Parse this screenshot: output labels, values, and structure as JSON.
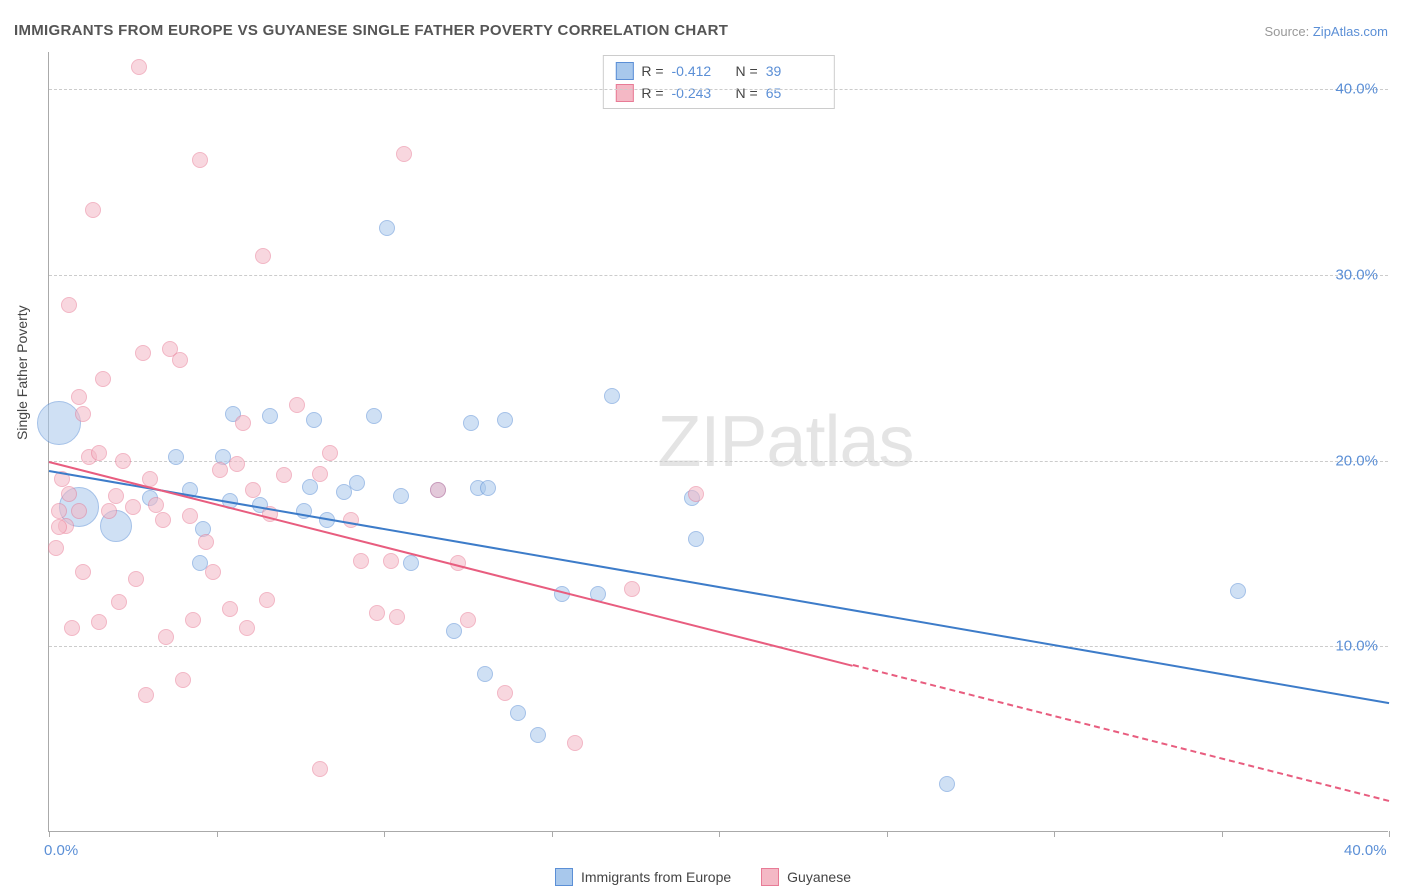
{
  "title": "IMMIGRANTS FROM EUROPE VS GUYANESE SINGLE FATHER POVERTY CORRELATION CHART",
  "source_prefix": "Source: ",
  "source_link": "ZipAtlas.com",
  "y_axis_label": "Single Father Poverty",
  "watermark_a": "ZIP",
  "watermark_b": "atlas",
  "chart": {
    "type": "scatter",
    "background_color": "#ffffff",
    "grid_color": "#cccccc",
    "axis_color": "#aaaaaa",
    "tick_label_color": "#5b8fd6",
    "xlim": [
      0,
      40
    ],
    "ylim": [
      0,
      42
    ],
    "y_ticks": [
      10,
      20,
      30,
      40
    ],
    "y_tick_labels": [
      "10.0%",
      "20.0%",
      "30.0%",
      "40.0%"
    ],
    "x_ticks": [
      0,
      5,
      10,
      15,
      20,
      25,
      30,
      35,
      40
    ],
    "x_tick_labels": {
      "0": "0.0%",
      "40": "40.0%"
    },
    "series": [
      {
        "name": "Immigrants from Europe",
        "fill": "#a8c8ec",
        "stroke": "#5b8fd6",
        "fill_opacity": 0.55,
        "R": -0.412,
        "N": 39,
        "trend": {
          "x1": 0,
          "y1": 19.5,
          "x2": 40,
          "y2": 7.0,
          "solid_until_x": 40,
          "color": "#3d7cc9",
          "width": 2
        },
        "points": [
          {
            "x": 0.3,
            "y": 22.0,
            "r": 22
          },
          {
            "x": 0.9,
            "y": 17.5,
            "r": 20
          },
          {
            "x": 2.0,
            "y": 16.5,
            "r": 16
          },
          {
            "x": 10.1,
            "y": 32.5,
            "r": 8
          },
          {
            "x": 5.5,
            "y": 22.5,
            "r": 8
          },
          {
            "x": 6.6,
            "y": 22.4,
            "r": 8
          },
          {
            "x": 7.9,
            "y": 22.2,
            "r": 8
          },
          {
            "x": 9.7,
            "y": 22.4,
            "r": 8
          },
          {
            "x": 13.6,
            "y": 22.2,
            "r": 8
          },
          {
            "x": 16.8,
            "y": 23.5,
            "r": 8
          },
          {
            "x": 3.0,
            "y": 18.0,
            "r": 8
          },
          {
            "x": 4.2,
            "y": 18.4,
            "r": 8
          },
          {
            "x": 4.6,
            "y": 16.3,
            "r": 8
          },
          {
            "x": 5.4,
            "y": 17.8,
            "r": 8
          },
          {
            "x": 6.3,
            "y": 17.6,
            "r": 8
          },
          {
            "x": 7.6,
            "y": 17.3,
            "r": 8
          },
          {
            "x": 7.8,
            "y": 18.6,
            "r": 8
          },
          {
            "x": 8.8,
            "y": 18.3,
            "r": 8
          },
          {
            "x": 8.3,
            "y": 16.8,
            "r": 8
          },
          {
            "x": 9.2,
            "y": 18.8,
            "r": 8
          },
          {
            "x": 10.5,
            "y": 18.1,
            "r": 8
          },
          {
            "x": 11.6,
            "y": 18.4,
            "r": 8
          },
          {
            "x": 12.8,
            "y": 18.5,
            "r": 8
          },
          {
            "x": 13.1,
            "y": 18.5,
            "r": 8
          },
          {
            "x": 19.2,
            "y": 18.0,
            "r": 8
          },
          {
            "x": 19.3,
            "y": 15.8,
            "r": 8
          },
          {
            "x": 4.5,
            "y": 14.5,
            "r": 8
          },
          {
            "x": 10.8,
            "y": 14.5,
            "r": 8
          },
          {
            "x": 12.1,
            "y": 10.8,
            "r": 8
          },
          {
            "x": 15.3,
            "y": 12.8,
            "r": 8
          },
          {
            "x": 16.4,
            "y": 12.8,
            "r": 8
          },
          {
            "x": 13.0,
            "y": 8.5,
            "r": 8
          },
          {
            "x": 14.0,
            "y": 6.4,
            "r": 8
          },
          {
            "x": 14.6,
            "y": 5.2,
            "r": 8
          },
          {
            "x": 35.5,
            "y": 13.0,
            "r": 8
          },
          {
            "x": 26.8,
            "y": 2.6,
            "r": 8
          },
          {
            "x": 12.6,
            "y": 22.0,
            "r": 8
          },
          {
            "x": 5.2,
            "y": 20.2,
            "r": 8
          },
          {
            "x": 3.8,
            "y": 20.2,
            "r": 8
          }
        ]
      },
      {
        "name": "Guyanese",
        "fill": "#f4b8c5",
        "stroke": "#e87b96",
        "fill_opacity": 0.55,
        "R": -0.243,
        "N": 65,
        "trend": {
          "x1": 0,
          "y1": 20.0,
          "x2": 40,
          "y2": 1.7,
          "solid_until_x": 24,
          "color": "#e85d7f",
          "width": 2
        },
        "points": [
          {
            "x": 2.7,
            "y": 41.2,
            "r": 8
          },
          {
            "x": 4.5,
            "y": 36.2,
            "r": 8
          },
          {
            "x": 1.3,
            "y": 33.5,
            "r": 8
          },
          {
            "x": 6.4,
            "y": 31.0,
            "r": 8
          },
          {
            "x": 0.6,
            "y": 28.4,
            "r": 8
          },
          {
            "x": 2.8,
            "y": 25.8,
            "r": 8
          },
          {
            "x": 3.6,
            "y": 26.0,
            "r": 8
          },
          {
            "x": 3.9,
            "y": 25.4,
            "r": 8
          },
          {
            "x": 1.6,
            "y": 24.4,
            "r": 8
          },
          {
            "x": 0.9,
            "y": 23.4,
            "r": 8
          },
          {
            "x": 1.0,
            "y": 22.5,
            "r": 8
          },
          {
            "x": 1.2,
            "y": 20.2,
            "r": 8
          },
          {
            "x": 1.5,
            "y": 20.4,
            "r": 8
          },
          {
            "x": 0.4,
            "y": 19.0,
            "r": 8
          },
          {
            "x": 0.6,
            "y": 18.2,
            "r": 8
          },
          {
            "x": 0.3,
            "y": 17.3,
            "r": 8
          },
          {
            "x": 0.9,
            "y": 17.3,
            "r": 8
          },
          {
            "x": 0.5,
            "y": 16.5,
            "r": 8
          },
          {
            "x": 0.3,
            "y": 16.4,
            "r": 8
          },
          {
            "x": 0.2,
            "y": 15.3,
            "r": 8
          },
          {
            "x": 1.8,
            "y": 17.3,
            "r": 8
          },
          {
            "x": 2.2,
            "y": 20.0,
            "r": 8
          },
          {
            "x": 2.0,
            "y": 18.1,
            "r": 8
          },
          {
            "x": 2.5,
            "y": 17.5,
            "r": 8
          },
          {
            "x": 3.2,
            "y": 17.6,
            "r": 8
          },
          {
            "x": 3.0,
            "y": 19.0,
            "r": 8
          },
          {
            "x": 3.4,
            "y": 16.8,
            "r": 8
          },
          {
            "x": 4.2,
            "y": 17.0,
            "r": 8
          },
          {
            "x": 4.7,
            "y": 15.6,
            "r": 8
          },
          {
            "x": 5.1,
            "y": 19.5,
            "r": 8
          },
          {
            "x": 5.6,
            "y": 19.8,
            "r": 8
          },
          {
            "x": 5.8,
            "y": 22.0,
            "r": 8
          },
          {
            "x": 6.1,
            "y": 18.4,
            "r": 8
          },
          {
            "x": 6.6,
            "y": 17.1,
            "r": 8
          },
          {
            "x": 7.0,
            "y": 19.2,
            "r": 8
          },
          {
            "x": 7.4,
            "y": 23.0,
            "r": 8
          },
          {
            "x": 8.1,
            "y": 19.3,
            "r": 8
          },
          {
            "x": 8.4,
            "y": 20.4,
            "r": 8
          },
          {
            "x": 9.3,
            "y": 14.6,
            "r": 8
          },
          {
            "x": 10.2,
            "y": 14.6,
            "r": 8
          },
          {
            "x": 10.6,
            "y": 36.5,
            "r": 8
          },
          {
            "x": 11.6,
            "y": 18.4,
            "r": 8
          },
          {
            "x": 0.7,
            "y": 11.0,
            "r": 8
          },
          {
            "x": 1.5,
            "y": 11.3,
            "r": 8
          },
          {
            "x": 2.1,
            "y": 12.4,
            "r": 8
          },
          {
            "x": 2.6,
            "y": 13.6,
            "r": 8
          },
          {
            "x": 3.5,
            "y": 10.5,
            "r": 8
          },
          {
            "x": 4.0,
            "y": 8.2,
            "r": 8
          },
          {
            "x": 4.3,
            "y": 11.4,
            "r": 8
          },
          {
            "x": 5.4,
            "y": 12.0,
            "r": 8
          },
          {
            "x": 5.9,
            "y": 11.0,
            "r": 8
          },
          {
            "x": 6.5,
            "y": 12.5,
            "r": 8
          },
          {
            "x": 8.1,
            "y": 3.4,
            "r": 8
          },
          {
            "x": 9.8,
            "y": 11.8,
            "r": 8
          },
          {
            "x": 10.4,
            "y": 11.6,
            "r": 8
          },
          {
            "x": 12.2,
            "y": 14.5,
            "r": 8
          },
          {
            "x": 12.5,
            "y": 11.4,
            "r": 8
          },
          {
            "x": 13.6,
            "y": 7.5,
            "r": 8
          },
          {
            "x": 15.7,
            "y": 4.8,
            "r": 8
          },
          {
            "x": 17.4,
            "y": 13.1,
            "r": 8
          },
          {
            "x": 19.3,
            "y": 18.2,
            "r": 8
          },
          {
            "x": 9.0,
            "y": 16.8,
            "r": 8
          },
          {
            "x": 2.9,
            "y": 7.4,
            "r": 8
          },
          {
            "x": 1.0,
            "y": 14.0,
            "r": 8
          },
          {
            "x": 4.9,
            "y": 14.0,
            "r": 8
          }
        ]
      }
    ]
  },
  "legend_top": {
    "r_label": "R =",
    "n_label": "N ="
  },
  "legend_bottom": [
    {
      "label": "Immigrants from Europe",
      "fill": "#a8c8ec",
      "stroke": "#5b8fd6"
    },
    {
      "label": "Guyanese",
      "fill": "#f4b8c5",
      "stroke": "#e87b96"
    }
  ]
}
